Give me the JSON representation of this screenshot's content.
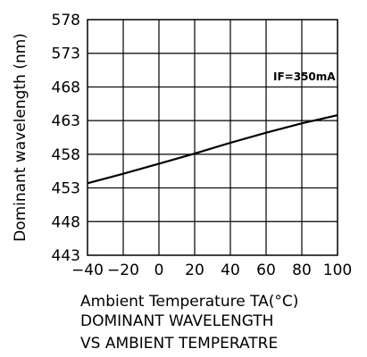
{
  "chart_data": {
    "type": "line",
    "title": "",
    "xlabel": "Ambient Temperature TA(°C)",
    "ylabel": "Dominant wavelength (nm)",
    "xlim": [
      -40,
      100
    ],
    "ylim_tick_labels": [
      "443",
      "448",
      "453",
      "458",
      "463",
      "468",
      "573",
      "578"
    ],
    "xticks": [
      -40,
      -20,
      0,
      20,
      40,
      60,
      80,
      100
    ],
    "x_tick_labels": [
      "−40",
      "−20",
      "0",
      "20",
      "40",
      "60",
      "80",
      "100"
    ],
    "annotation": "IF=350mA",
    "grid": true,
    "series": [
      {
        "x": [
          -40,
          -20,
          0,
          20,
          40,
          60,
          80,
          100
        ],
        "values": [
          453.7,
          455.1,
          456.6,
          458.1,
          459.7,
          461.2,
          462.6,
          463.8
        ]
      }
    ]
  },
  "caption": {
    "line1": "DOMINANT WAVELENGTH",
    "line2": "VS AMBIENT TEMPERATRE"
  }
}
